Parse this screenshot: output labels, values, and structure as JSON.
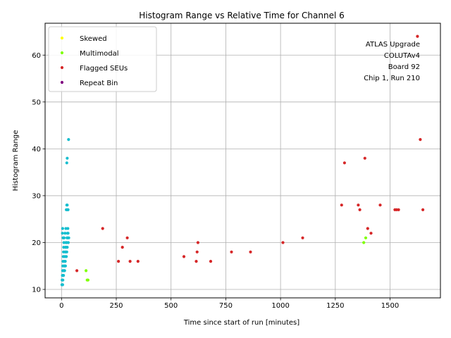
{
  "chart_data": {
    "type": "scatter",
    "title": "Histogram Range vs Relative Time for Channel 6",
    "xlabel": "Time since start of run [minutes]",
    "ylabel": "Histogram Range",
    "xlim": [
      -75,
      1730
    ],
    "ylim": [
      8.2,
      66.8
    ],
    "xticks": [
      0,
      250,
      500,
      750,
      1000,
      1250,
      1500
    ],
    "yticks": [
      10,
      20,
      30,
      40,
      50,
      60
    ],
    "grid": true,
    "legend_position": "top-left",
    "annotation": [
      "ATLAS Upgrade",
      "COLUTAv4",
      "Board 92",
      "Chip 1, Run 210"
    ],
    "series": [
      {
        "name": "",
        "color": "#17becf",
        "points": [
          [
            2,
            11
          ],
          [
            3,
            12
          ],
          [
            4,
            13
          ],
          [
            5,
            14
          ],
          [
            6,
            15
          ],
          [
            7,
            16
          ],
          [
            8,
            17
          ],
          [
            9,
            18
          ],
          [
            10,
            19
          ],
          [
            11,
            20
          ],
          [
            5,
            11
          ],
          [
            6,
            12
          ],
          [
            8,
            13
          ],
          [
            10,
            14
          ],
          [
            12,
            15
          ],
          [
            13,
            16
          ],
          [
            15,
            17
          ],
          [
            16,
            18
          ],
          [
            18,
            19
          ],
          [
            20,
            20
          ],
          [
            9,
            13
          ],
          [
            11,
            14
          ],
          [
            14,
            15
          ],
          [
            17,
            16
          ],
          [
            19,
            18
          ],
          [
            21,
            19
          ],
          [
            23,
            20
          ],
          [
            25,
            21
          ],
          [
            27,
            22
          ],
          [
            29,
            23
          ],
          [
            14,
            14
          ],
          [
            18,
            15
          ],
          [
            22,
            17
          ],
          [
            24,
            18
          ],
          [
            26,
            19
          ],
          [
            28,
            21
          ],
          [
            30,
            22
          ],
          [
            31,
            20
          ],
          [
            33,
            21
          ],
          [
            4,
            22
          ],
          [
            5,
            23
          ],
          [
            7,
            21
          ],
          [
            9,
            21
          ],
          [
            12,
            21
          ],
          [
            16,
            22
          ],
          [
            20,
            23
          ],
          [
            22,
            27
          ],
          [
            24,
            28
          ],
          [
            26,
            28
          ],
          [
            28,
            27
          ],
          [
            30,
            27
          ],
          [
            24,
            37
          ],
          [
            26,
            38
          ],
          [
            32,
            42
          ]
        ]
      },
      {
        "name": "Skewed",
        "color": "#ffff00",
        "points": []
      },
      {
        "name": "Multimodal",
        "color": "#7fff00",
        "points": [
          [
            112,
            14
          ],
          [
            117,
            12
          ],
          [
            121,
            12
          ],
          [
            1380,
            20
          ],
          [
            1389,
            21
          ]
        ]
      },
      {
        "name": "Flagged SEUs",
        "color": "#d62728",
        "points": [
          [
            70,
            14
          ],
          [
            188,
            23
          ],
          [
            260,
            16
          ],
          [
            278,
            19
          ],
          [
            300,
            21
          ],
          [
            313,
            16
          ],
          [
            349,
            16
          ],
          [
            559,
            17
          ],
          [
            615,
            16
          ],
          [
            619,
            18
          ],
          [
            623,
            20
          ],
          [
            681,
            16
          ],
          [
            776,
            18
          ],
          [
            863,
            18
          ],
          [
            1011,
            20
          ],
          [
            1101,
            21
          ],
          [
            1279,
            28
          ],
          [
            1292,
            37
          ],
          [
            1355,
            28
          ],
          [
            1362,
            27
          ],
          [
            1385,
            38
          ],
          [
            1398,
            23
          ],
          [
            1413,
            22
          ],
          [
            1455,
            28
          ],
          [
            1522,
            27
          ],
          [
            1530,
            27
          ],
          [
            1539,
            27
          ],
          [
            1625,
            64
          ],
          [
            1638,
            42
          ],
          [
            1650,
            27
          ]
        ]
      },
      {
        "name": "Repeat Bin",
        "color": "#800080",
        "points": []
      }
    ]
  }
}
